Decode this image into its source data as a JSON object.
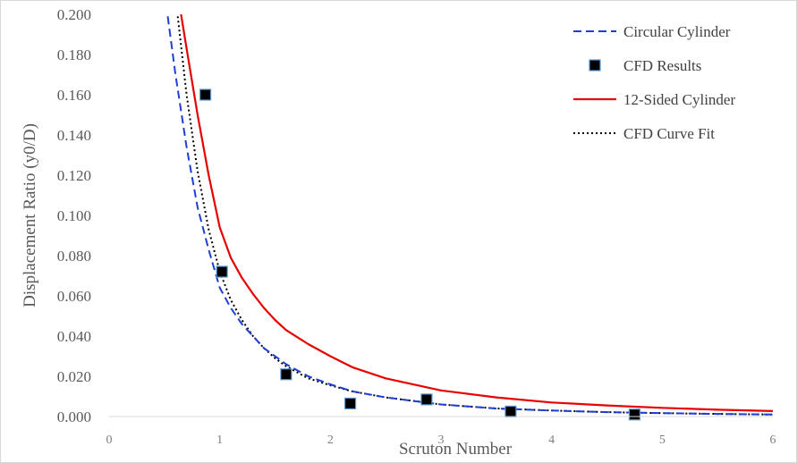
{
  "chart_data": {
    "type": "line",
    "title": "",
    "xlabel": "Scruton Number",
    "ylabel": "Displacement Ratio (y0/D)",
    "xlim": [
      0,
      6
    ],
    "ylim": [
      0,
      0.2
    ],
    "x_ticks": [
      "0",
      "1",
      "2",
      "3",
      "4",
      "5",
      "6"
    ],
    "y_ticks": [
      "0.000",
      "0.020",
      "0.040",
      "0.060",
      "0.080",
      "0.100",
      "0.120",
      "0.140",
      "0.160",
      "0.180",
      "0.200"
    ],
    "grid": false,
    "legend_position": "top-right",
    "series": [
      {
        "name": "Circular Cylinder",
        "kind": "line",
        "style": "dashed",
        "color": "#1f3fd1",
        "x": [
          0.53,
          0.6,
          0.7,
          0.8,
          0.9,
          1.0,
          1.1,
          1.2,
          1.3,
          1.4,
          1.5,
          1.6,
          1.8,
          2.0,
          2.2,
          2.5,
          3.0,
          3.5,
          4.0,
          4.5,
          5.0,
          5.5,
          6.0
        ],
        "y": [
          0.199,
          0.17,
          0.134,
          0.104,
          0.083,
          0.064,
          0.054,
          0.046,
          0.04,
          0.034,
          0.03,
          0.026,
          0.02,
          0.016,
          0.0125,
          0.0095,
          0.006,
          0.004,
          0.003,
          0.0022,
          0.0017,
          0.0013,
          0.001
        ]
      },
      {
        "name": "CFD Results",
        "kind": "scatter",
        "color": "#000000",
        "edge_color": "#5b9bd5",
        "x": [
          0.87,
          1.02,
          1.6,
          2.18,
          2.87,
          3.63,
          4.75
        ],
        "y": [
          0.16,
          0.072,
          0.021,
          0.0065,
          0.0085,
          0.0025,
          0.001
        ]
      },
      {
        "name": "12-Sided Cylinder",
        "kind": "line",
        "style": "solid",
        "color": "#e60000",
        "x": [
          0.65,
          0.7,
          0.8,
          0.9,
          1.0,
          1.1,
          1.2,
          1.3,
          1.4,
          1.5,
          1.6,
          1.8,
          2.0,
          2.2,
          2.5,
          3.0,
          3.5,
          4.0,
          4.5,
          5.0,
          5.5,
          6.0
        ],
        "y": [
          0.2,
          0.183,
          0.15,
          0.12,
          0.094,
          0.079,
          0.069,
          0.061,
          0.054,
          0.048,
          0.043,
          0.036,
          0.03,
          0.0245,
          0.019,
          0.013,
          0.0095,
          0.007,
          0.0055,
          0.0043,
          0.0034,
          0.0027
        ]
      },
      {
        "name": "CFD Curve Fit",
        "kind": "line",
        "style": "dotted",
        "color": "#000000",
        "x": [
          0.62,
          0.7,
          0.8,
          0.9,
          1.0,
          1.1,
          1.2,
          1.3,
          1.4,
          1.5,
          1.6,
          1.8,
          2.0,
          2.2,
          2.5,
          3.0,
          3.5,
          4.0,
          4.5,
          5.0,
          5.5,
          6.0
        ],
        "y": [
          0.199,
          0.16,
          0.122,
          0.093,
          0.072,
          0.058,
          0.048,
          0.04,
          0.034,
          0.029,
          0.025,
          0.019,
          0.0155,
          0.0125,
          0.0095,
          0.006,
          0.004,
          0.003,
          0.0022,
          0.0017,
          0.0013,
          0.001
        ]
      }
    ]
  }
}
